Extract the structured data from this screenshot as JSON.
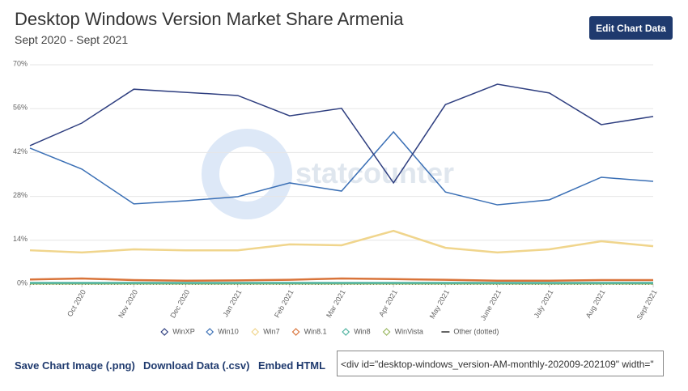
{
  "chart_data": {
    "type": "line",
    "title": "Desktop Windows Version Market Share Armenia",
    "subtitle": "Sept 2020 - Sept 2021",
    "watermark": "statcounter",
    "categories": [
      null,
      "Oct 2020",
      "Nov 2020",
      "Dec 2020",
      "Jan 2021",
      "Feb 2021",
      "Mar 2021",
      "Apr 2021",
      "May 2021",
      "June 2021",
      "July 2021",
      "Aug 2021",
      "Sept 2021"
    ],
    "ylim": [
      0,
      70
    ],
    "yticks": [
      {
        "value": 0,
        "label": "0%"
      },
      {
        "value": 14,
        "label": "14%"
      },
      {
        "value": 28,
        "label": "28%"
      },
      {
        "value": 42,
        "label": "42%"
      },
      {
        "value": 56,
        "label": "56%"
      },
      {
        "value": 70,
        "label": "70%"
      }
    ],
    "grid": true,
    "series": [
      {
        "name": "WinXP",
        "color": "#2f3f80",
        "values": [
          44.2,
          51.4,
          62.2,
          61.2,
          60.2,
          53.7,
          56.1,
          32.3,
          57.3,
          63.8,
          61.0,
          50.9,
          53.5
        ]
      },
      {
        "name": "Win10",
        "color": "#3a6fb5",
        "values": [
          43.4,
          36.7,
          25.6,
          26.6,
          27.9,
          32.3,
          29.7,
          48.6,
          29.4,
          25.3,
          26.9,
          34.1,
          32.8
        ]
      },
      {
        "name": "Win7",
        "color": "#f0d58c",
        "values": [
          10.8,
          10.1,
          11.1,
          10.8,
          10.8,
          12.7,
          12.4,
          17.0,
          11.6,
          10.1,
          11.1,
          13.7,
          12.1
        ]
      },
      {
        "name": "Win8.1",
        "color": "#d9743a",
        "values": [
          1.5,
          1.8,
          1.3,
          1.1,
          1.2,
          1.4,
          1.8,
          1.6,
          1.4,
          1.1,
          1.1,
          1.3,
          1.3
        ]
      },
      {
        "name": "Win8",
        "color": "#4fb3a0",
        "values": [
          0.4,
          0.4,
          0.4,
          0.4,
          0.4,
          0.4,
          0.4,
          0.4,
          0.4,
          0.4,
          0.4,
          0.4,
          0.4
        ]
      },
      {
        "name": "WinVista",
        "color": "#9ab860",
        "values": [
          0.2,
          0.2,
          0.2,
          0.2,
          0.2,
          0.2,
          0.2,
          0.2,
          0.2,
          0.2,
          0.2,
          0.2,
          0.2
        ]
      },
      {
        "name": "Other (dotted)",
        "color": "#333333",
        "dotted": true,
        "values": [
          0.1,
          0.1,
          0.1,
          0.1,
          0.1,
          0.1,
          0.1,
          0.1,
          0.1,
          0.1,
          0.1,
          0.1,
          0.1
        ]
      }
    ]
  },
  "ui": {
    "edit_button": "Edit Chart Data",
    "save_image": "Save Chart Image (.png)",
    "download_data": "Download Data (.csv)",
    "embed_html": "Embed HTML",
    "embed_code": "<div id=\"desktop-windows_version-AM-monthly-202009-202109\" width=\""
  }
}
